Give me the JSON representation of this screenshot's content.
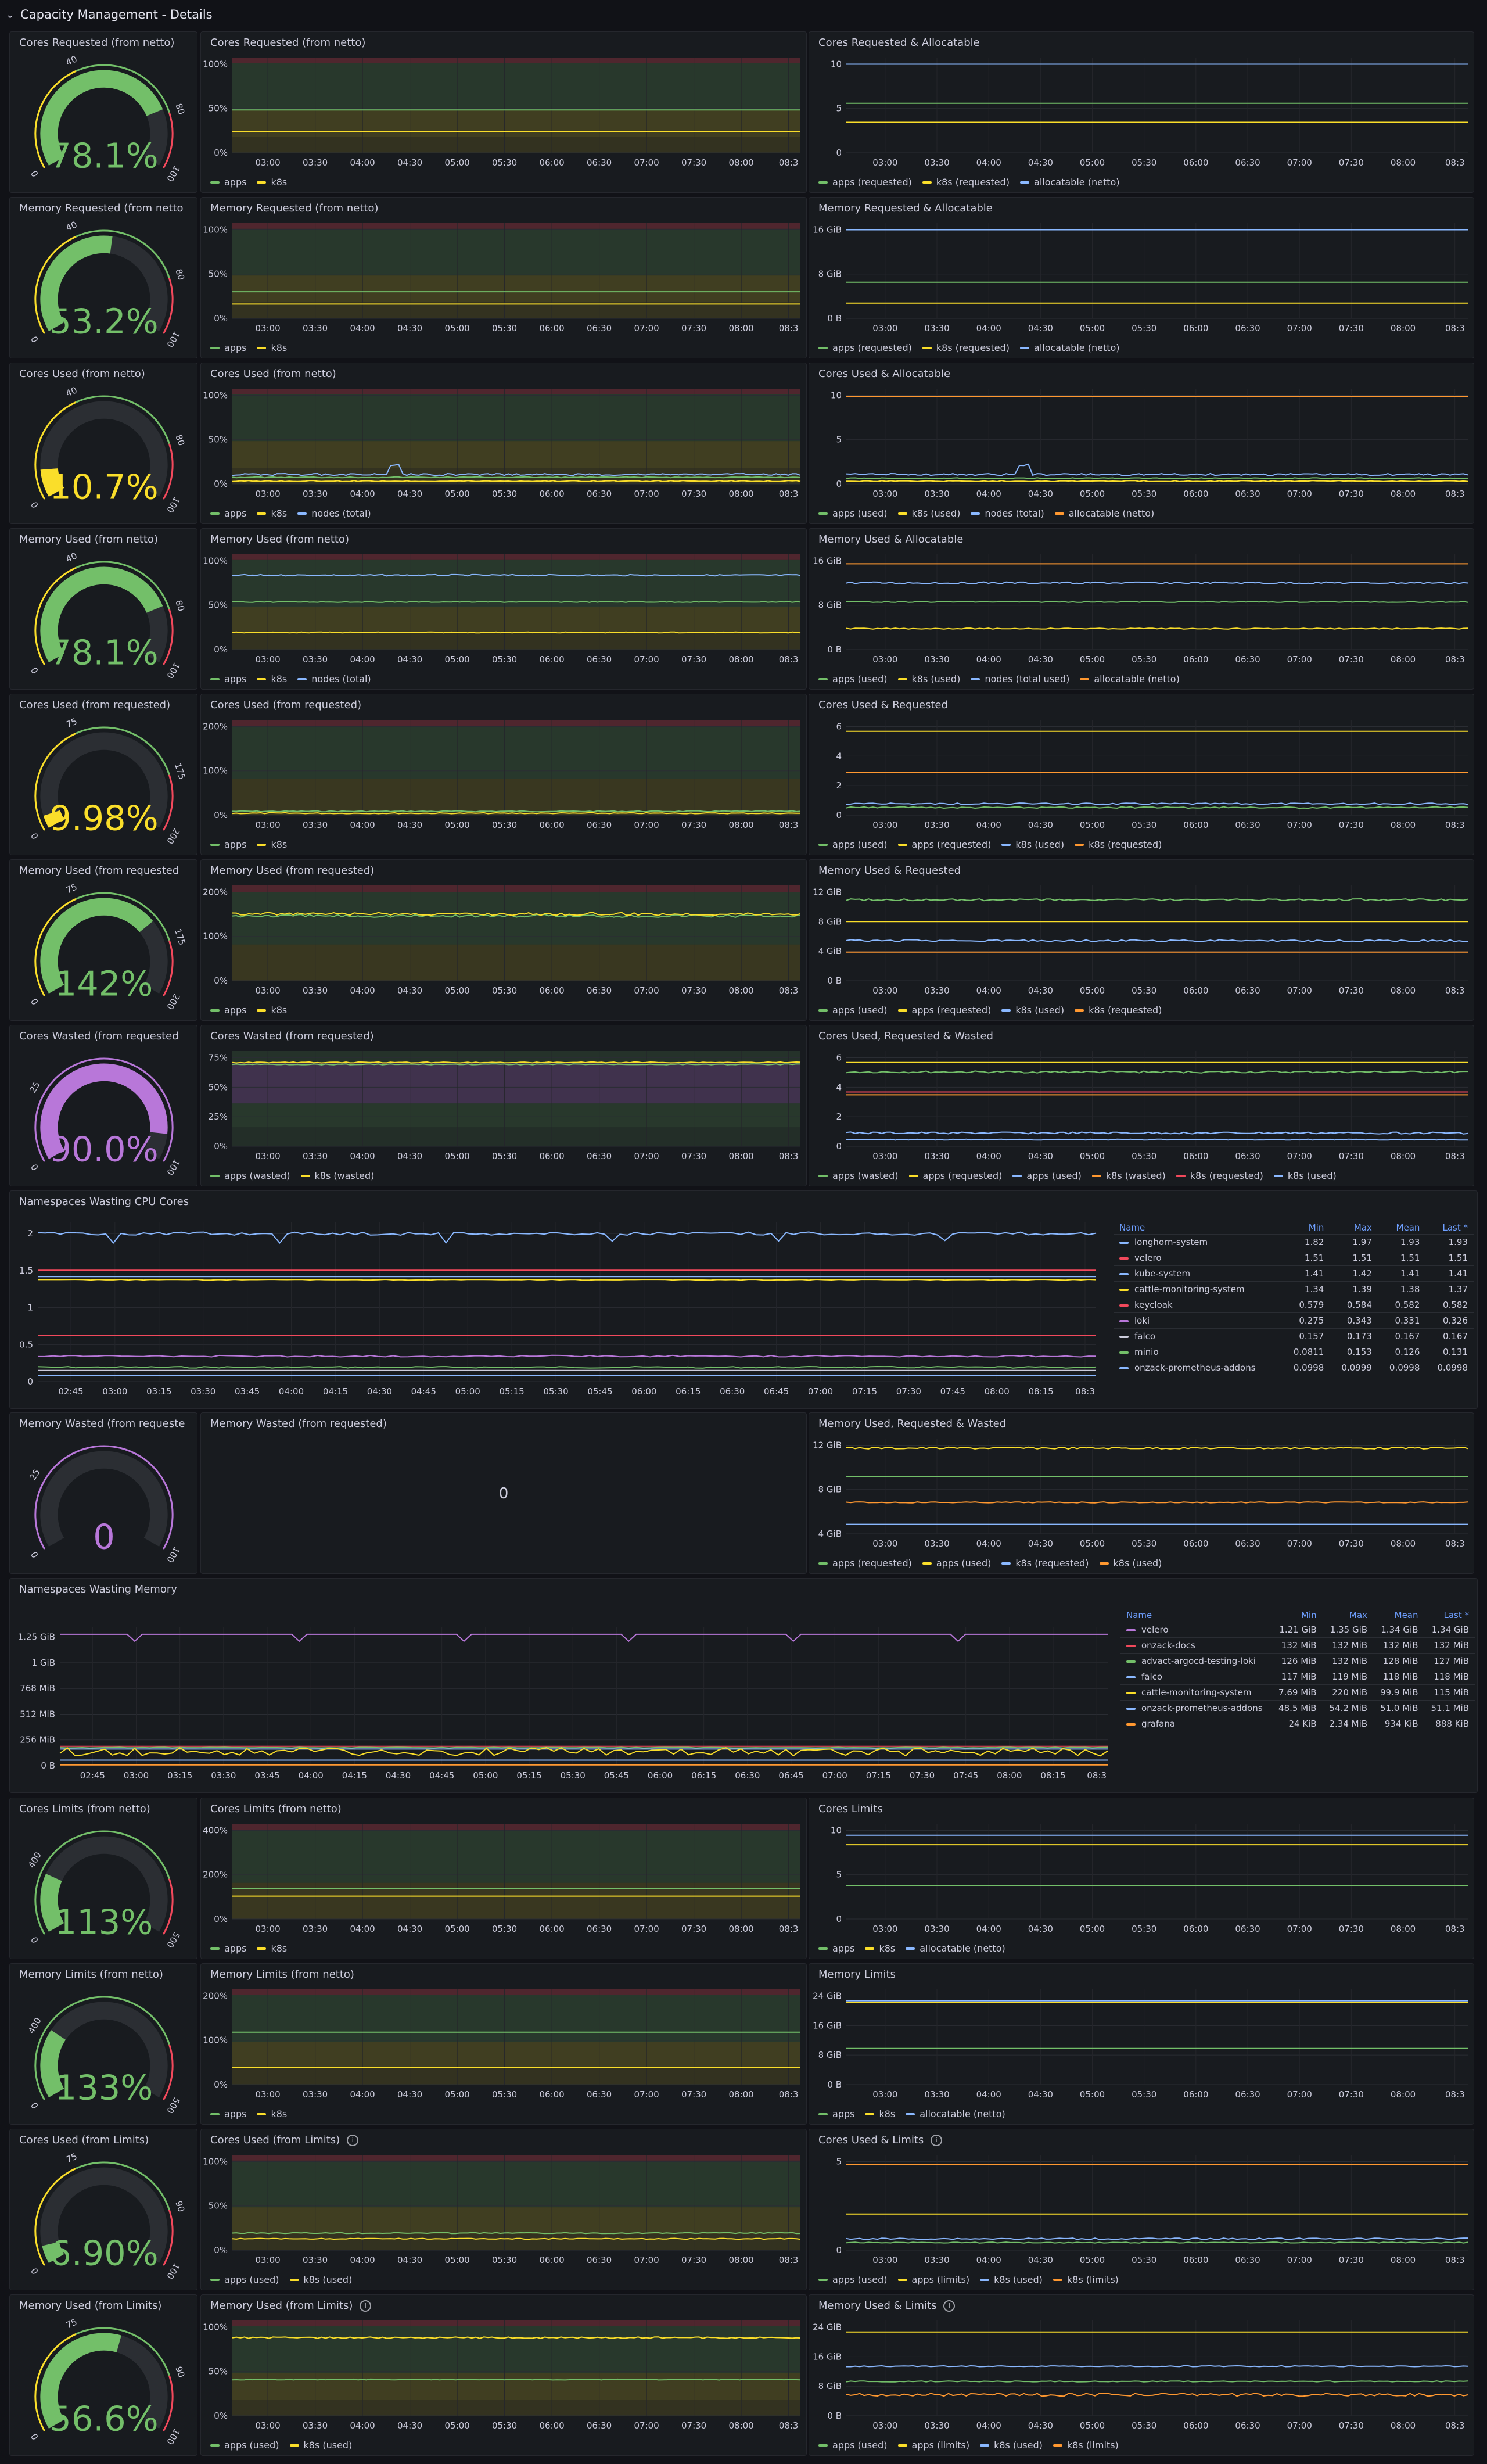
{
  "section_title": "Capacity Management - Details",
  "colors": {
    "green": "#73bf69",
    "yellow": "#fade2a",
    "blue": "#8ab8ff",
    "orange": "#ff9830",
    "red": "#f2495c",
    "purple": "#b877d9"
  },
  "time_ticks": [
    "03:00",
    "03:30",
    "04:00",
    "04:30",
    "05:00",
    "05:30",
    "06:00",
    "06:30",
    "07:00",
    "07:30",
    "08:00",
    "08:3"
  ],
  "ns_time_ticks": [
    "02:45",
    "03:00",
    "03:15",
    "03:30",
    "03:45",
    "04:00",
    "04:15",
    "04:30",
    "04:45",
    "05:00",
    "05:15",
    "05:30",
    "05:45",
    "06:00",
    "06:15",
    "06:30",
    "06:45",
    "07:00",
    "07:15",
    "07:30",
    "07:45",
    "08:00",
    "08:15",
    "08:3"
  ],
  "rows": [
    {
      "gauge": {
        "title": "Cores Requested (from netto)",
        "value": "78.1%",
        "pct": 0.781,
        "color": "#73bf69",
        "scale": [
          "0",
          "40",
          "80",
          "100"
        ]
      },
      "mid": {
        "title": "Cores Requested (from netto)",
        "yticks": [
          "0%",
          "50%",
          "100%"
        ],
        "legend": [
          {
            "label": "apps",
            "color": "#73bf69"
          },
          {
            "label": "k8s",
            "color": "#fade2a"
          }
        ]
      },
      "right": {
        "title": "Cores Requested & Allocatable",
        "yticks": [
          "0",
          "5",
          "10"
        ],
        "legend": [
          {
            "label": "apps (requested)",
            "color": "#73bf69"
          },
          {
            "label": "k8s (requested)",
            "color": "#fade2a"
          },
          {
            "label": "allocatable (netto)",
            "color": "#8ab8ff"
          }
        ]
      }
    },
    {
      "gauge": {
        "title": "Memory Requested (from netto",
        "value": "53.2%",
        "pct": 0.532,
        "color": "#73bf69",
        "scale": [
          "0",
          "40",
          "80",
          "100"
        ]
      },
      "mid": {
        "title": "Memory Requested (from netto)",
        "yticks": [
          "0%",
          "50%",
          "100%"
        ],
        "legend": [
          {
            "label": "apps",
            "color": "#73bf69"
          },
          {
            "label": "k8s",
            "color": "#fade2a"
          }
        ]
      },
      "right": {
        "title": "Memory Requested & Allocatable",
        "yticks": [
          "0 B",
          "8 GiB",
          "16 GiB"
        ],
        "legend": [
          {
            "label": "apps (requested)",
            "color": "#73bf69"
          },
          {
            "label": "k8s (requested)",
            "color": "#fade2a"
          },
          {
            "label": "allocatable (netto)",
            "color": "#8ab8ff"
          }
        ]
      }
    },
    {
      "gauge": {
        "title": "Cores Used (from netto)",
        "value": "10.7%",
        "pct": 0.107,
        "color": "#fade2a",
        "scale": [
          "0",
          "40",
          "80",
          "100"
        ]
      },
      "mid": {
        "title": "Cores Used (from netto)",
        "yticks": [
          "0%",
          "50%",
          "100%"
        ],
        "legend": [
          {
            "label": "apps",
            "color": "#73bf69"
          },
          {
            "label": "k8s",
            "color": "#fade2a"
          },
          {
            "label": "nodes (total)",
            "color": "#8ab8ff"
          }
        ]
      },
      "right": {
        "title": "Cores Used & Allocatable",
        "yticks": [
          "0",
          "5",
          "10"
        ],
        "legend": [
          {
            "label": "apps (used)",
            "color": "#73bf69"
          },
          {
            "label": "k8s (used)",
            "color": "#fade2a"
          },
          {
            "label": "nodes (total)",
            "color": "#8ab8ff"
          },
          {
            "label": "allocatable (netto)",
            "color": "#ff9830"
          }
        ]
      }
    },
    {
      "gauge": {
        "title": "Memory Used (from netto)",
        "value": "78.1%",
        "pct": 0.781,
        "color": "#73bf69",
        "scale": [
          "0",
          "40",
          "80",
          "100"
        ]
      },
      "mid": {
        "title": "Memory Used (from netto)",
        "yticks": [
          "0%",
          "50%",
          "100%"
        ],
        "legend": [
          {
            "label": "apps",
            "color": "#73bf69"
          },
          {
            "label": "k8s",
            "color": "#fade2a"
          },
          {
            "label": "nodes (total)",
            "color": "#8ab8ff"
          }
        ]
      },
      "right": {
        "title": "Memory Used & Allocatable",
        "yticks": [
          "0 B",
          "8 GiB",
          "16 GiB"
        ],
        "legend": [
          {
            "label": "apps (used)",
            "color": "#73bf69"
          },
          {
            "label": "k8s (used)",
            "color": "#fade2a"
          },
          {
            "label": "nodes (total used)",
            "color": "#8ab8ff"
          },
          {
            "label": "allocatable (netto)",
            "color": "#ff9830"
          }
        ]
      }
    },
    {
      "gauge": {
        "title": "Cores Used (from requested)",
        "value": "9.98%",
        "pct": 0.0499,
        "color": "#fade2a",
        "scale": [
          "0",
          "75",
          "175",
          "200"
        ]
      },
      "mid": {
        "title": "Cores Used (from requested)",
        "yticks": [
          "0%",
          "100%",
          "200%"
        ],
        "legend": [
          {
            "label": "apps",
            "color": "#73bf69"
          },
          {
            "label": "k8s",
            "color": "#fade2a"
          }
        ]
      },
      "right": {
        "title": "Cores Used & Requested",
        "yticks": [
          "0",
          "2",
          "4",
          "6"
        ],
        "legend": [
          {
            "label": "apps (used)",
            "color": "#73bf69"
          },
          {
            "label": "apps (requested)",
            "color": "#fade2a"
          },
          {
            "label": "k8s (used)",
            "color": "#8ab8ff"
          },
          {
            "label": "k8s (requested)",
            "color": "#ff9830"
          }
        ]
      }
    },
    {
      "gauge": {
        "title": "Memory Used (from requested",
        "value": "142%",
        "pct": 0.71,
        "color": "#73bf69",
        "scale": [
          "0",
          "75",
          "175",
          "200"
        ]
      },
      "mid": {
        "title": "Memory Used (from requested)",
        "yticks": [
          "0%",
          "100%",
          "200%"
        ],
        "legend": [
          {
            "label": "apps",
            "color": "#73bf69"
          },
          {
            "label": "k8s",
            "color": "#fade2a"
          }
        ]
      },
      "right": {
        "title": "Memory Used & Requested",
        "yticks": [
          "0 B",
          "4 GiB",
          "8 GiB",
          "12 GiB"
        ],
        "legend": [
          {
            "label": "apps (used)",
            "color": "#73bf69"
          },
          {
            "label": "apps (requested)",
            "color": "#fade2a"
          },
          {
            "label": "k8s (used)",
            "color": "#8ab8ff"
          },
          {
            "label": "k8s (requested)",
            "color": "#ff9830"
          }
        ]
      }
    },
    {
      "gauge": {
        "title": "Cores Wasted (from requested",
        "value": "90.0%",
        "pct": 0.9,
        "color": "#b877d9",
        "scale": [
          "0",
          "25",
          "100"
        ]
      },
      "mid": {
        "title": "Cores Wasted (from requested)",
        "yticks": [
          "0%",
          "25%",
          "50%",
          "75%"
        ],
        "legend": [
          {
            "label": "apps (wasted)",
            "color": "#73bf69"
          },
          {
            "label": "k8s (wasted)",
            "color": "#fade2a"
          }
        ]
      },
      "right": {
        "title": "Cores Used, Requested & Wasted",
        "yticks": [
          "0",
          "2",
          "4",
          "6"
        ],
        "legend": [
          {
            "label": "apps (wasted)",
            "color": "#73bf69"
          },
          {
            "label": "apps (requested)",
            "color": "#fade2a"
          },
          {
            "label": "apps (used)",
            "color": "#8ab8ff"
          },
          {
            "label": "k8s (wasted)",
            "color": "#ff9830"
          },
          {
            "label": "k8s (requested)",
            "color": "#f2495c"
          },
          {
            "label": "k8s (used)",
            "color": "#8ab8ff"
          }
        ]
      }
    }
  ],
  "ns_cpu": {
    "title": "Namespaces Wasting CPU Cores",
    "yticks": [
      "0",
      "0.5",
      "1",
      "1.5",
      "2"
    ],
    "columns": [
      "Name",
      "Min",
      "Max",
      "Mean",
      "Last *"
    ],
    "rows": [
      {
        "name": "longhorn-system",
        "color": "#8ab8ff",
        "min": "1.82",
        "max": "1.97",
        "mean": "1.93",
        "last": "1.93"
      },
      {
        "name": "velero",
        "color": "#f2495c",
        "min": "1.51",
        "max": "1.51",
        "mean": "1.51",
        "last": "1.51"
      },
      {
        "name": "kube-system",
        "color": "#8ab8ff",
        "min": "1.41",
        "max": "1.42",
        "mean": "1.41",
        "last": "1.41"
      },
      {
        "name": "cattle-monitoring-system",
        "color": "#fade2a",
        "min": "1.34",
        "max": "1.39",
        "mean": "1.38",
        "last": "1.37"
      },
      {
        "name": "keycloak",
        "color": "#f2495c",
        "min": "0.579",
        "max": "0.584",
        "mean": "0.582",
        "last": "0.582"
      },
      {
        "name": "loki",
        "color": "#b877d9",
        "min": "0.275",
        "max": "0.343",
        "mean": "0.331",
        "last": "0.326"
      },
      {
        "name": "falco",
        "color": "#ccccdc",
        "min": "0.157",
        "max": "0.173",
        "mean": "0.167",
        "last": "0.167"
      },
      {
        "name": "minio",
        "color": "#73bf69",
        "min": "0.0811",
        "max": "0.153",
        "mean": "0.126",
        "last": "0.131"
      },
      {
        "name": "onzack-prometheus-addons",
        "color": "#8ab8ff",
        "min": "0.0998",
        "max": "0.0999",
        "mean": "0.0998",
        "last": "0.0998"
      }
    ]
  },
  "mem_wasted": {
    "gauge": {
      "title": "Memory Wasted (from requeste",
      "value": "0",
      "pct": 0,
      "color": "#b877d9",
      "scale": [
        "0",
        "25",
        "100"
      ]
    },
    "mid": {
      "title": "Memory Wasted (from requested)",
      "value": "0"
    },
    "right": {
      "title": "Memory Used, Requested & Wasted",
      "yticks": [
        "4 GiB",
        "8 GiB",
        "12 GiB"
      ],
      "legend": [
        {
          "label": "apps (requested)",
          "color": "#73bf69"
        },
        {
          "label": "apps (used)",
          "color": "#fade2a"
        },
        {
          "label": "k8s (requested)",
          "color": "#8ab8ff"
        },
        {
          "label": "k8s (used)",
          "color": "#ff9830"
        }
      ]
    }
  },
  "ns_mem": {
    "title": "Namespaces Wasting Memory",
    "yticks": [
      "0 B",
      "256 MiB",
      "512 MiB",
      "768 MiB",
      "1 GiB",
      "1.25 GiB"
    ],
    "columns": [
      "Name",
      "Min",
      "Max",
      "Mean",
      "Last *"
    ],
    "rows": [
      {
        "name": "velero",
        "color": "#b877d9",
        "min": "1.21 GiB",
        "max": "1.35 GiB",
        "mean": "1.34 GiB",
        "last": "1.34 GiB"
      },
      {
        "name": "onzack-docs",
        "color": "#f2495c",
        "min": "132 MiB",
        "max": "132 MiB",
        "mean": "132 MiB",
        "last": "132 MiB"
      },
      {
        "name": "advact-argocd-testing-loki",
        "color": "#73bf69",
        "min": "126 MiB",
        "max": "132 MiB",
        "mean": "128 MiB",
        "last": "127 MiB"
      },
      {
        "name": "falco",
        "color": "#8ab8ff",
        "min": "117 MiB",
        "max": "119 MiB",
        "mean": "118 MiB",
        "last": "118 MiB"
      },
      {
        "name": "cattle-monitoring-system",
        "color": "#fade2a",
        "min": "7.69 MiB",
        "max": "220 MiB",
        "mean": "99.9 MiB",
        "last": "115 MiB"
      },
      {
        "name": "onzack-prometheus-addons",
        "color": "#8ab8ff",
        "min": "48.5 MiB",
        "max": "54.2 MiB",
        "mean": "51.0 MiB",
        "last": "51.1 MiB"
      },
      {
        "name": "grafana",
        "color": "#ff9830",
        "min": "24 KiB",
        "max": "2.34 MiB",
        "mean": "934 KiB",
        "last": "888 KiB"
      }
    ]
  },
  "limits_rows": [
    {
      "gauge": {
        "title": "Cores Limits (from netto)",
        "value": "113%",
        "pct": 0.226,
        "color": "#73bf69",
        "scale": [
          "0",
          "400",
          "500"
        ]
      },
      "mid": {
        "title": "Cores Limits (from netto)",
        "info": false,
        "yticks": [
          "0%",
          "200%",
          "400%"
        ],
        "legend": [
          {
            "label": "apps",
            "color": "#73bf69"
          },
          {
            "label": "k8s",
            "color": "#fade2a"
          }
        ]
      },
      "right": {
        "title": "Cores Limits",
        "info": false,
        "yticks": [
          "0",
          "5",
          "10"
        ],
        "legend": [
          {
            "label": "apps",
            "color": "#73bf69"
          },
          {
            "label": "k8s",
            "color": "#fade2a"
          },
          {
            "label": "allocatable (netto)",
            "color": "#8ab8ff"
          }
        ]
      }
    },
    {
      "gauge": {
        "title": "Memory Limits (from netto)",
        "value": "133%",
        "pct": 0.266,
        "color": "#73bf69",
        "scale": [
          "0",
          "400",
          "500"
        ]
      },
      "mid": {
        "title": "Memory Limits (from netto)",
        "info": false,
        "yticks": [
          "0%",
          "100%",
          "200%"
        ],
        "legend": [
          {
            "label": "apps",
            "color": "#73bf69"
          },
          {
            "label": "k8s",
            "color": "#fade2a"
          }
        ]
      },
      "right": {
        "title": "Memory Limits",
        "info": false,
        "yticks": [
          "0 B",
          "8 GiB",
          "16 GiB",
          "24 GiB"
        ],
        "legend": [
          {
            "label": "apps",
            "color": "#73bf69"
          },
          {
            "label": "k8s",
            "color": "#fade2a"
          },
          {
            "label": "allocatable (netto)",
            "color": "#8ab8ff"
          }
        ]
      }
    },
    {
      "gauge": {
        "title": "Cores Used (from Limits)",
        "value": "6.90%",
        "pct": 0.069,
        "color": "#73bf69",
        "scale": [
          "0",
          "75",
          "90",
          "100"
        ]
      },
      "mid": {
        "title": "Cores Used (from Limits)",
        "info": true,
        "yticks": [
          "0%",
          "50%",
          "100%"
        ],
        "legend": [
          {
            "label": "apps (used)",
            "color": "#73bf69"
          },
          {
            "label": "k8s (used)",
            "color": "#fade2a"
          }
        ]
      },
      "right": {
        "title": "Cores Used & Limits",
        "info": true,
        "yticks": [
          "0",
          "5"
        ],
        "legend": [
          {
            "label": "apps (used)",
            "color": "#73bf69"
          },
          {
            "label": "apps (limits)",
            "color": "#fade2a"
          },
          {
            "label": "k8s (used)",
            "color": "#8ab8ff"
          },
          {
            "label": "k8s (limits)",
            "color": "#ff9830"
          }
        ]
      }
    },
    {
      "gauge": {
        "title": "Memory Used (from Limits)",
        "value": "56.6%",
        "pct": 0.566,
        "color": "#73bf69",
        "scale": [
          "0",
          "75",
          "90",
          "100"
        ]
      },
      "mid": {
        "title": "Memory Used (from Limits)",
        "info": true,
        "yticks": [
          "0%",
          "50%",
          "100%"
        ],
        "legend": [
          {
            "label": "apps (used)",
            "color": "#73bf69"
          },
          {
            "label": "k8s (used)",
            "color": "#fade2a"
          }
        ]
      },
      "right": {
        "title": "Memory Used & Limits",
        "info": true,
        "yticks": [
          "0 B",
          "8 GiB",
          "16 GiB",
          "24 GiB"
        ],
        "legend": [
          {
            "label": "apps (used)",
            "color": "#73bf69"
          },
          {
            "label": "apps (limits)",
            "color": "#fade2a"
          },
          {
            "label": "k8s (used)",
            "color": "#8ab8ff"
          },
          {
            "label": "k8s (limits)",
            "color": "#ff9830"
          }
        ]
      }
    }
  ]
}
